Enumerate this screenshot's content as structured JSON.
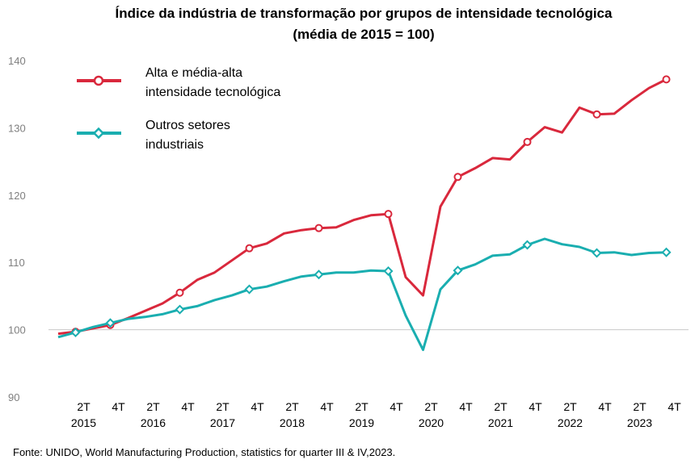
{
  "chart_data": {
    "type": "line",
    "title": "Índice da indústria  de transformação  por grupos  de intensidade tecnológica",
    "subtitle": "(média de 2015 = 100)",
    "ylim": [
      90,
      140
    ],
    "yticks": [
      "90",
      "100",
      "110",
      "120",
      "130",
      "140"
    ],
    "grid": false,
    "baseline": 100,
    "legend_placement": "top-left",
    "x": [
      "2015 T1",
      "2015 T2",
      "2015 T3",
      "2015 T4",
      "2016 T1",
      "2016 T2",
      "2016 T3",
      "2016 T4",
      "2017 T1",
      "2017 T2",
      "2017 T3",
      "2017 T4",
      "2018 T1",
      "2018 T2",
      "2018 T3",
      "2018 T4",
      "2019 T1",
      "2019 T2",
      "2019 T3",
      "2019 T4",
      "2020 T1",
      "2020 T2",
      "2020 T3",
      "2020 T4",
      "2021 T1",
      "2021 T2",
      "2021 T3",
      "2021 T4",
      "2022 T1",
      "2022 T2",
      "2022 T3",
      "2022 T4",
      "2023 T1",
      "2023 T2",
      "2023 T3",
      "2023 T4"
    ],
    "xticks": [
      {
        "idx": 1,
        "line1": "2T",
        "line2": "2015"
      },
      {
        "idx": 3,
        "line1": "4T",
        "line2": ""
      },
      {
        "idx": 5,
        "line1": "2T",
        "line2": "2016"
      },
      {
        "idx": 7,
        "line1": "4T",
        "line2": ""
      },
      {
        "idx": 9,
        "line1": "2T",
        "line2": "2017"
      },
      {
        "idx": 11,
        "line1": "4T",
        "line2": ""
      },
      {
        "idx": 13,
        "line1": "2T",
        "line2": "2018"
      },
      {
        "idx": 15,
        "line1": "4T",
        "line2": ""
      },
      {
        "idx": 17,
        "line1": "2T",
        "line2": "2019"
      },
      {
        "idx": 19,
        "line1": "4T",
        "line2": ""
      },
      {
        "idx": 21,
        "line1": "2T",
        "line2": "2020"
      },
      {
        "idx": 23,
        "line1": "4T",
        "line2": ""
      },
      {
        "idx": 25,
        "line1": "2T",
        "line2": "2021"
      },
      {
        "idx": 27,
        "line1": "4T",
        "line2": ""
      },
      {
        "idx": 29,
        "line1": "2T",
        "line2": "2022"
      },
      {
        "idx": 31,
        "line1": "4T",
        "line2": ""
      },
      {
        "idx": 33,
        "line1": "2T",
        "line2": "2023"
      },
      {
        "idx": 35,
        "line1": "4T",
        "line2": ""
      }
    ],
    "series": [
      {
        "name": "Alta e média-alta intensidade tecnológica",
        "name_lines": [
          "Alta e média-alta",
          "intensidade tecnológica"
        ],
        "color": "#d9283c",
        "marker": "circle",
        "values": [
          99.4,
          99.7,
          100.2,
          100.7,
          101.7,
          102.8,
          103.9,
          105.5,
          107.4,
          108.5,
          110.3,
          112.1,
          112.8,
          114.3,
          114.8,
          115.1,
          115.2,
          116.3,
          117.0,
          117.2,
          107.8,
          105.1,
          118.3,
          122.7,
          124.0,
          125.5,
          125.3,
          127.9,
          130.1,
          129.3,
          133.0,
          132.0,
          132.1,
          134.1,
          135.9,
          137.2
        ]
      },
      {
        "name": "Outros setores industriais",
        "name_lines": [
          "Outros setores",
          "industriais"
        ],
        "color": "#1aaeb0",
        "marker": "diamond",
        "values": [
          98.9,
          99.6,
          100.4,
          101.0,
          101.6,
          101.9,
          102.3,
          103.0,
          103.5,
          104.4,
          105.1,
          106.0,
          106.4,
          107.2,
          107.9,
          108.2,
          108.5,
          108.5,
          108.8,
          108.7,
          102.1,
          97.0,
          106.0,
          108.8,
          109.7,
          111.0,
          111.2,
          112.6,
          113.5,
          112.7,
          112.3,
          111.4,
          111.5,
          111.1,
          111.4,
          111.5
        ]
      }
    ],
    "marked_points": [
      1,
      3,
      7,
      11,
      15,
      19,
      23,
      27,
      31,
      35
    ]
  },
  "source": "Fonte: UNIDO, World Manufacturing Production, statistics for quarter III & IV,2023."
}
